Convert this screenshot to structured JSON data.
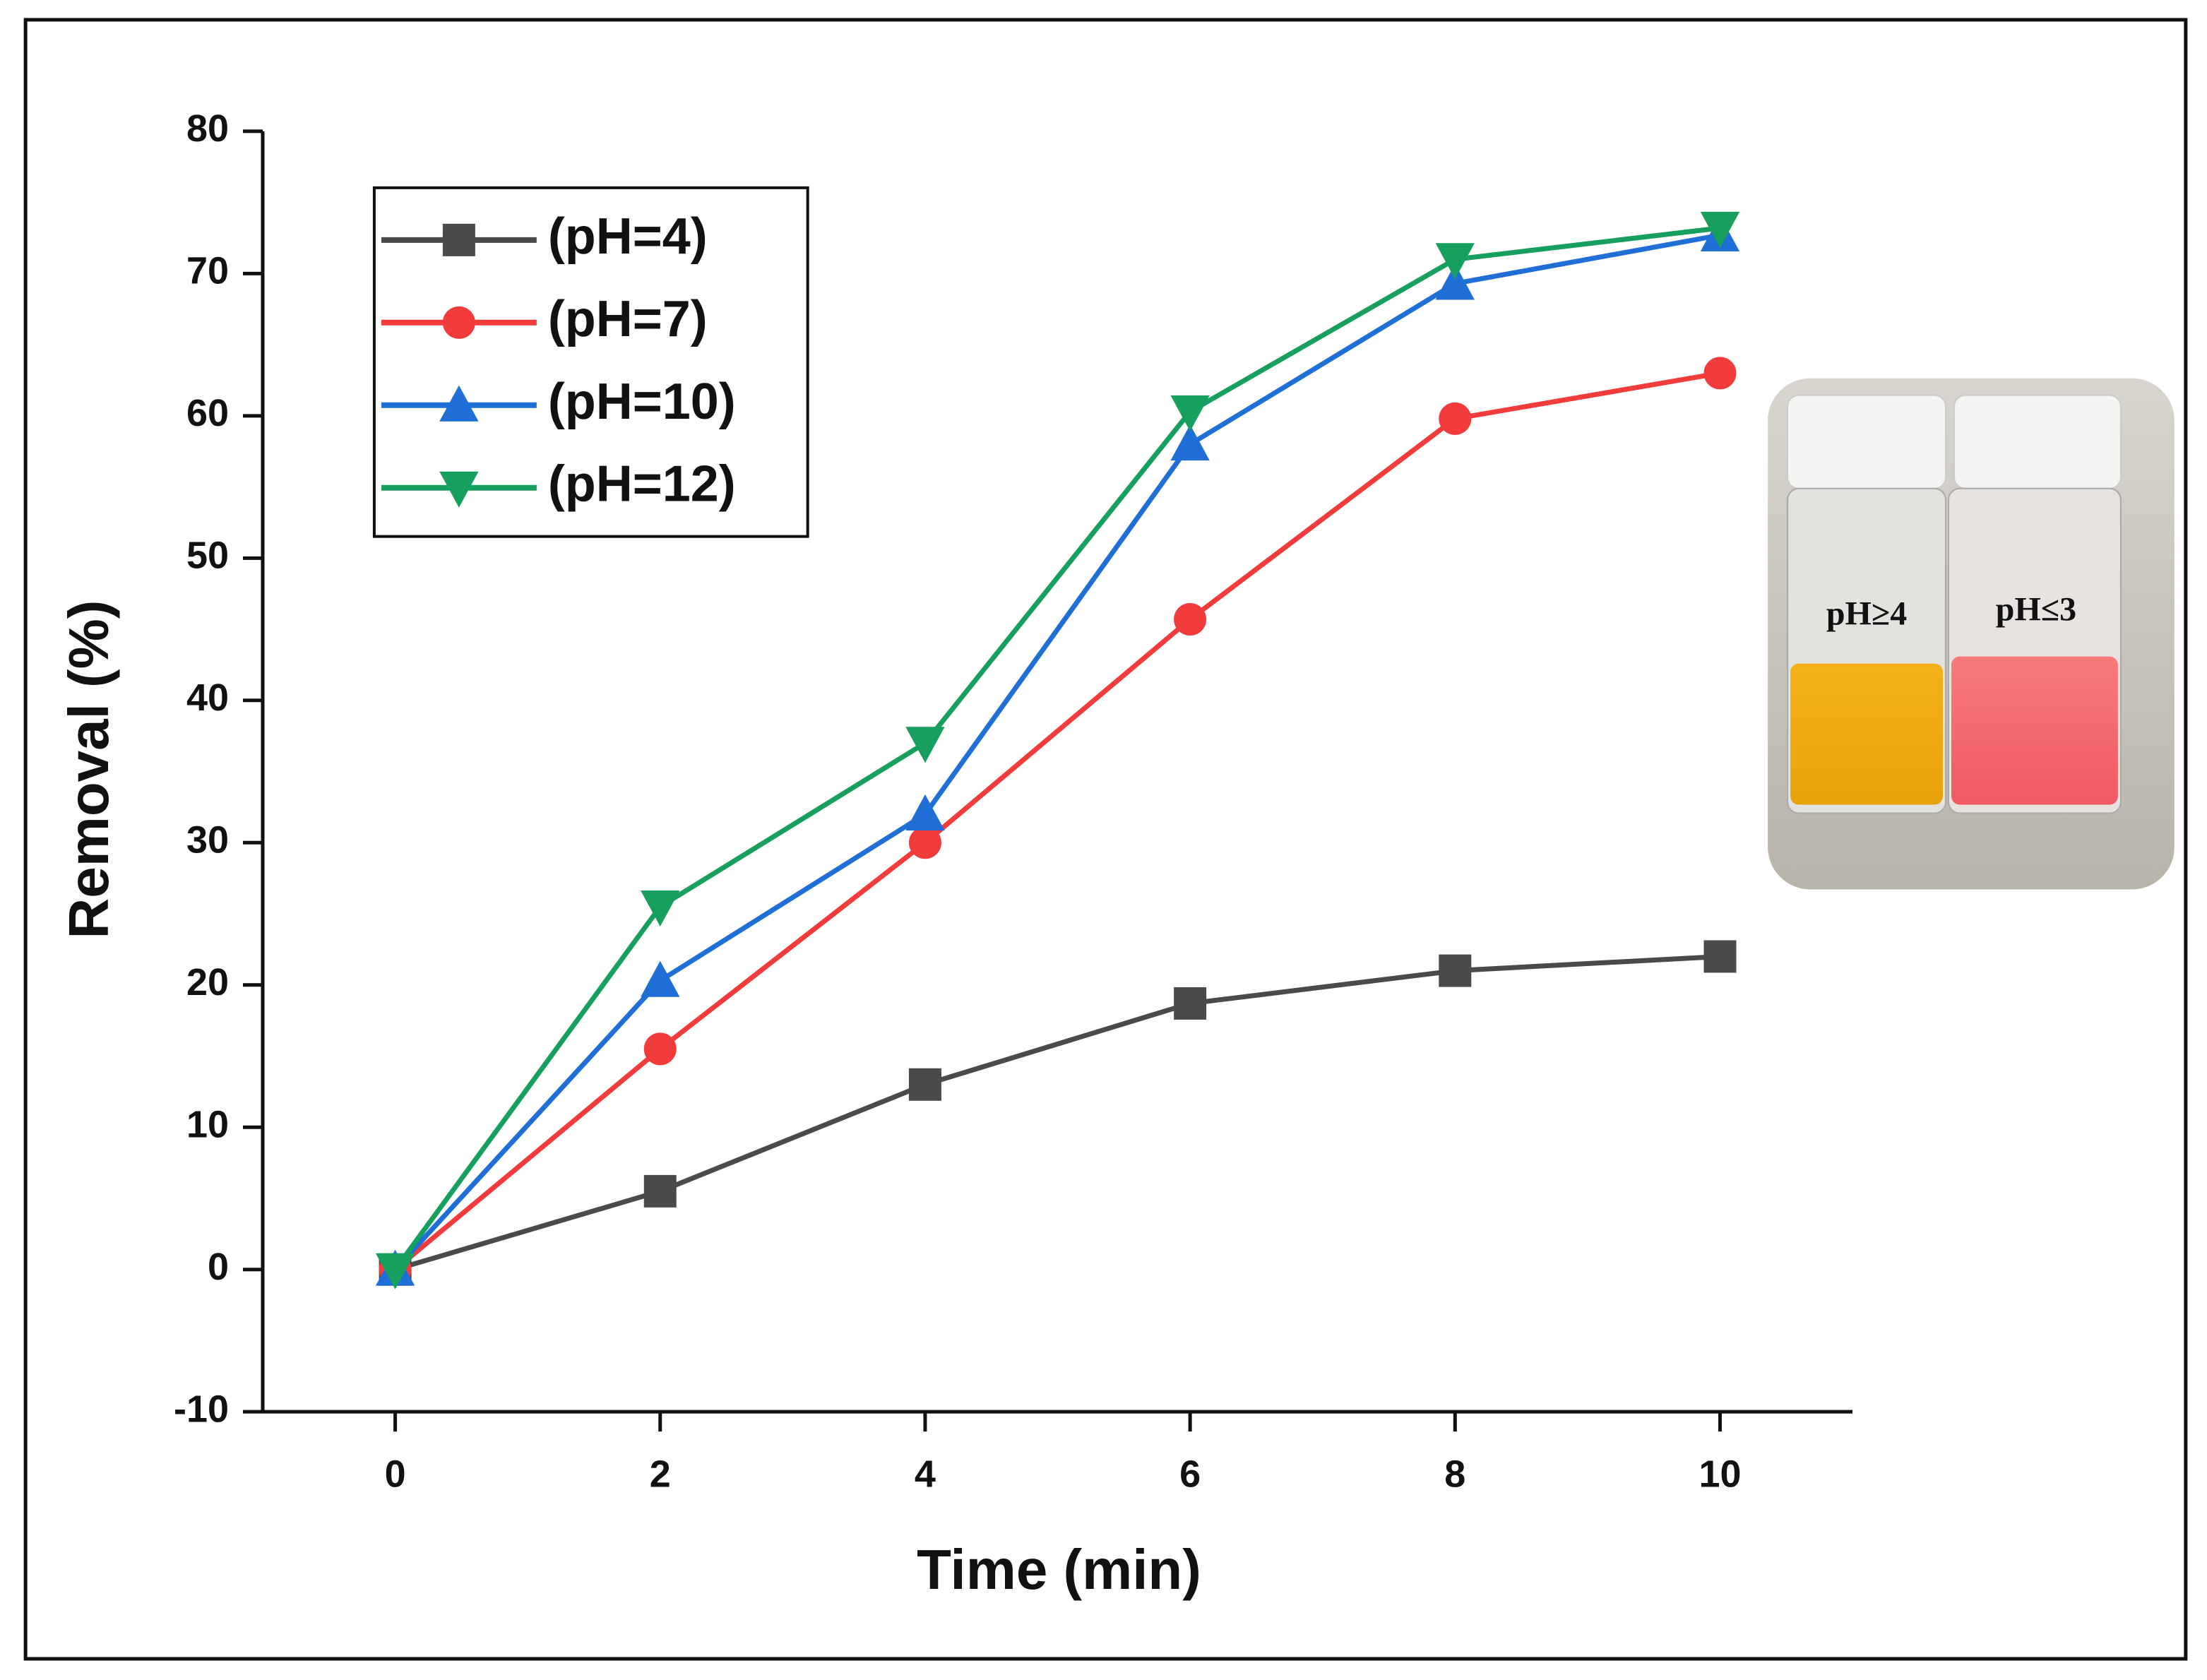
{
  "chart_data": {
    "type": "line",
    "x_label": "Time (min)",
    "y_label": "Removal (%)",
    "x": [
      0,
      2,
      4,
      6,
      8,
      10
    ],
    "series": [
      {
        "name": "(pH=4)",
        "color": "#4a4a4a",
        "marker": "square",
        "values": [
          0,
          5.5,
          13,
          18.7,
          21,
          22
        ]
      },
      {
        "name": "(pH=7)",
        "color": "#f23b3b",
        "marker": "circle",
        "values": [
          0,
          15.5,
          30,
          45.7,
          59.8,
          63
        ]
      },
      {
        "name": "(pH=10)",
        "color": "#1f6fd6",
        "marker": "triangle-up",
        "values": [
          0,
          20.3,
          32,
          58,
          69.3,
          72.7
        ]
      },
      {
        "name": "(pH=12)",
        "color": "#17a05d",
        "marker": "triangle-down",
        "values": [
          0,
          25.5,
          37,
          60.3,
          71,
          73.2
        ]
      }
    ],
    "xlim": [
      -1,
      11
    ],
    "xticks": [
      0,
      2,
      4,
      6,
      8,
      10
    ],
    "ylim": [
      -10,
      80
    ],
    "yticks": [
      -10,
      0,
      10,
      20,
      30,
      40,
      50,
      60,
      70,
      80
    ],
    "grid": false,
    "legend": "upper left",
    "annotations": [
      "pH≥4",
      "pH≤3"
    ]
  }
}
